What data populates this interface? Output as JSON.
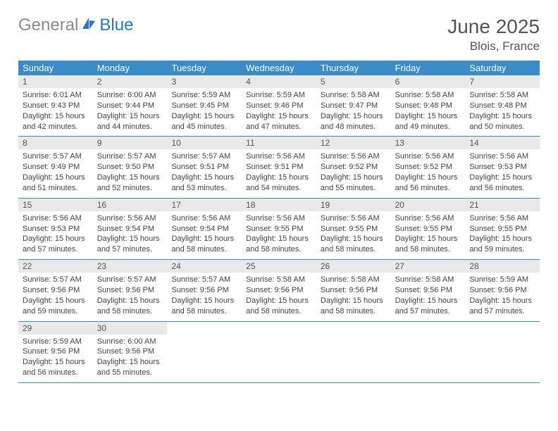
{
  "logo": {
    "part1": "General",
    "part2": "Blue"
  },
  "title": "June 2025",
  "location": "Blois, France",
  "colors": {
    "header_blue": "#3b8bc9",
    "gray_bar": "#e9e9e9",
    "text": "#444444",
    "title_text": "#555555",
    "logo_gray": "#8c8c8c",
    "logo_blue": "#2a77bb"
  },
  "font": {
    "body_pt": 11,
    "daynum_pt": 12,
    "dow_pt": 13,
    "title_pt": 28,
    "location_pt": 17
  },
  "daysOfWeek": [
    "Sunday",
    "Monday",
    "Tuesday",
    "Wednesday",
    "Thursday",
    "Friday",
    "Saturday"
  ],
  "weeks": [
    [
      {
        "n": 1,
        "sr": "6:01 AM",
        "ss": "9:43 PM",
        "dl": "15 hours and 42 minutes."
      },
      {
        "n": 2,
        "sr": "6:00 AM",
        "ss": "9:44 PM",
        "dl": "15 hours and 44 minutes."
      },
      {
        "n": 3,
        "sr": "5:59 AM",
        "ss": "9:45 PM",
        "dl": "15 hours and 45 minutes."
      },
      {
        "n": 4,
        "sr": "5:59 AM",
        "ss": "9:46 PM",
        "dl": "15 hours and 47 minutes."
      },
      {
        "n": 5,
        "sr": "5:58 AM",
        "ss": "9:47 PM",
        "dl": "15 hours and 48 minutes."
      },
      {
        "n": 6,
        "sr": "5:58 AM",
        "ss": "9:48 PM",
        "dl": "15 hours and 49 minutes."
      },
      {
        "n": 7,
        "sr": "5:58 AM",
        "ss": "9:48 PM",
        "dl": "15 hours and 50 minutes."
      }
    ],
    [
      {
        "n": 8,
        "sr": "5:57 AM",
        "ss": "9:49 PM",
        "dl": "15 hours and 51 minutes."
      },
      {
        "n": 9,
        "sr": "5:57 AM",
        "ss": "9:50 PM",
        "dl": "15 hours and 52 minutes."
      },
      {
        "n": 10,
        "sr": "5:57 AM",
        "ss": "9:51 PM",
        "dl": "15 hours and 53 minutes."
      },
      {
        "n": 11,
        "sr": "5:56 AM",
        "ss": "9:51 PM",
        "dl": "15 hours and 54 minutes."
      },
      {
        "n": 12,
        "sr": "5:56 AM",
        "ss": "9:52 PM",
        "dl": "15 hours and 55 minutes."
      },
      {
        "n": 13,
        "sr": "5:56 AM",
        "ss": "9:52 PM",
        "dl": "15 hours and 56 minutes."
      },
      {
        "n": 14,
        "sr": "5:56 AM",
        "ss": "9:53 PM",
        "dl": "15 hours and 56 minutes."
      }
    ],
    [
      {
        "n": 15,
        "sr": "5:56 AM",
        "ss": "9:53 PM",
        "dl": "15 hours and 57 minutes."
      },
      {
        "n": 16,
        "sr": "5:56 AM",
        "ss": "9:54 PM",
        "dl": "15 hours and 57 minutes."
      },
      {
        "n": 17,
        "sr": "5:56 AM",
        "ss": "9:54 PM",
        "dl": "15 hours and 58 minutes."
      },
      {
        "n": 18,
        "sr": "5:56 AM",
        "ss": "9:55 PM",
        "dl": "15 hours and 58 minutes."
      },
      {
        "n": 19,
        "sr": "5:56 AM",
        "ss": "9:55 PM",
        "dl": "15 hours and 58 minutes."
      },
      {
        "n": 20,
        "sr": "5:56 AM",
        "ss": "9:55 PM",
        "dl": "15 hours and 58 minutes."
      },
      {
        "n": 21,
        "sr": "5:56 AM",
        "ss": "9:55 PM",
        "dl": "15 hours and 59 minutes."
      }
    ],
    [
      {
        "n": 22,
        "sr": "5:57 AM",
        "ss": "9:56 PM",
        "dl": "15 hours and 59 minutes."
      },
      {
        "n": 23,
        "sr": "5:57 AM",
        "ss": "9:56 PM",
        "dl": "15 hours and 58 minutes."
      },
      {
        "n": 24,
        "sr": "5:57 AM",
        "ss": "9:56 PM",
        "dl": "15 hours and 58 minutes."
      },
      {
        "n": 25,
        "sr": "5:58 AM",
        "ss": "9:56 PM",
        "dl": "15 hours and 58 minutes."
      },
      {
        "n": 26,
        "sr": "5:58 AM",
        "ss": "9:56 PM",
        "dl": "15 hours and 58 minutes."
      },
      {
        "n": 27,
        "sr": "5:58 AM",
        "ss": "9:56 PM",
        "dl": "15 hours and 57 minutes."
      },
      {
        "n": 28,
        "sr": "5:59 AM",
        "ss": "9:56 PM",
        "dl": "15 hours and 57 minutes."
      }
    ],
    [
      {
        "n": 29,
        "sr": "5:59 AM",
        "ss": "9:56 PM",
        "dl": "15 hours and 56 minutes."
      },
      {
        "n": 30,
        "sr": "6:00 AM",
        "ss": "9:56 PM",
        "dl": "15 hours and 55 minutes."
      },
      null,
      null,
      null,
      null,
      null
    ]
  ],
  "labels": {
    "sunrise": "Sunrise:",
    "sunset": "Sunset:",
    "daylight": "Daylight:"
  }
}
